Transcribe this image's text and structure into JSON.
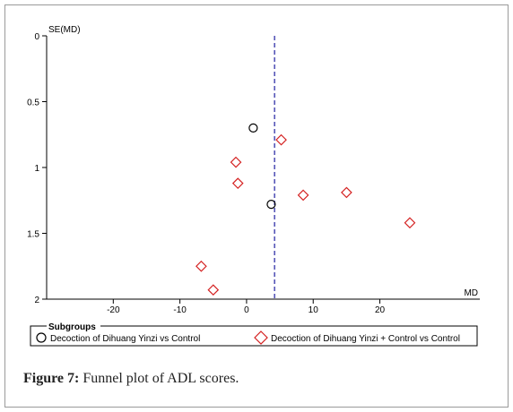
{
  "caption": {
    "label": "Figure 7:",
    "text": " Funnel plot of ADL scores."
  },
  "chart_data": {
    "type": "scatter",
    "title": "",
    "xlabel": "MD",
    "ylabel": "SE(MD)",
    "xlim": [
      -30,
      35
    ],
    "ylim": [
      0,
      2
    ],
    "y_inverted": true,
    "x_ticks": [
      "-20",
      "-10",
      "0",
      "10",
      "20"
    ],
    "x_tick_values": [
      -20,
      -10,
      0,
      10,
      20
    ],
    "y_ticks": [
      "0",
      "0.5",
      "1",
      "1.5",
      "2"
    ],
    "y_tick_values": [
      0,
      0.5,
      1,
      1.5,
      2
    ],
    "reference_line_x": 4.2,
    "legend": {
      "title": "Subgroups",
      "placement": "bottom"
    },
    "series": [
      {
        "name": "Decoction of Dihuang Yinzi vs Control",
        "marker": "circle",
        "color": "#000000",
        "points": [
          {
            "x": 1.0,
            "y": 0.7
          },
          {
            "x": 3.7,
            "y": 1.28
          }
        ]
      },
      {
        "name": "Decoction of Dihuang Yinzi + Control vs Control",
        "marker": "diamond",
        "color": "#d42020",
        "points": [
          {
            "x": 5.2,
            "y": 0.79
          },
          {
            "x": -1.6,
            "y": 0.96
          },
          {
            "x": -1.3,
            "y": 1.12
          },
          {
            "x": 8.5,
            "y": 1.21
          },
          {
            "x": 15.0,
            "y": 1.19
          },
          {
            "x": 24.5,
            "y": 1.42
          },
          {
            "x": -6.8,
            "y": 1.75
          },
          {
            "x": -5.0,
            "y": 1.93
          }
        ]
      }
    ]
  }
}
